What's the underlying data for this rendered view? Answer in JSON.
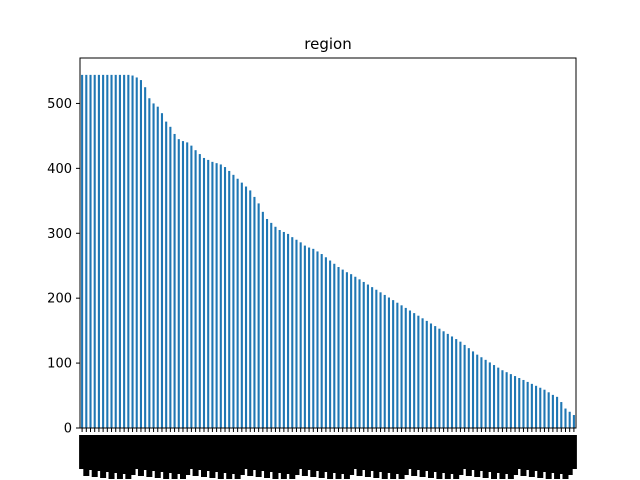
{
  "chart_data": {
    "type": "bar",
    "title": "region",
    "xlabel": "",
    "ylabel": "",
    "ylim": [
      0,
      570
    ],
    "yticks": [
      0,
      100,
      200,
      300,
      400,
      500
    ],
    "bar_color": "#1f77b4",
    "grid": false,
    "legend": false,
    "values": [
      544,
      544,
      544,
      544,
      544,
      544,
      544,
      544,
      544,
      544,
      544,
      544,
      543,
      540,
      536,
      525,
      508,
      500,
      495,
      485,
      472,
      464,
      453,
      445,
      442,
      440,
      435,
      428,
      422,
      416,
      413,
      410,
      408,
      406,
      402,
      396,
      390,
      384,
      378,
      372,
      366,
      356,
      346,
      333,
      322,
      316,
      310,
      305,
      302,
      299,
      294,
      290,
      286,
      281,
      278,
      276,
      272,
      268,
      263,
      258,
      253,
      248,
      244,
      240,
      237,
      233,
      229,
      225,
      221,
      217,
      213,
      209,
      205,
      201,
      197,
      193,
      189,
      185,
      181,
      177,
      173,
      169,
      165,
      161,
      157,
      153,
      149,
      145,
      141,
      137,
      133,
      128,
      123,
      118,
      113,
      109,
      105,
      101,
      97,
      93,
      89,
      86,
      83,
      80,
      77,
      74,
      71,
      68,
      65,
      62,
      59,
      55,
      51,
      48,
      40,
      30,
      25,
      20
    ]
  }
}
